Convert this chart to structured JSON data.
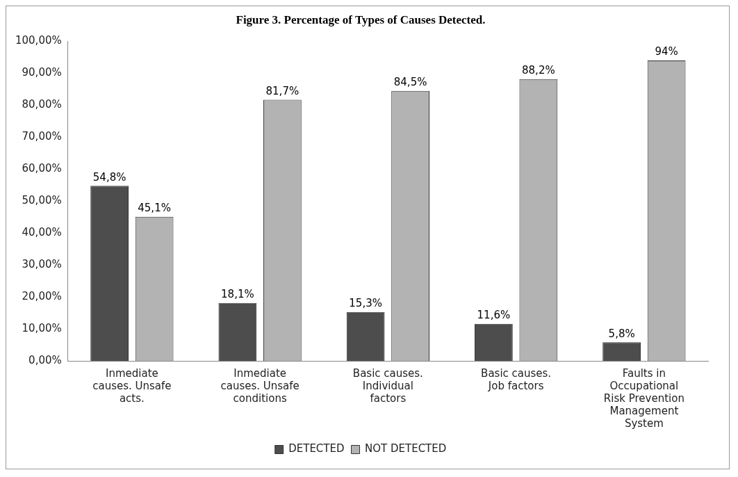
{
  "chart_data": {
    "type": "bar",
    "title": "Figure 3. Percentage of Types of Causes Detected.",
    "categories": [
      "Inmediate causes. Unsafe acts.",
      "Inmediate causes. Unsafe conditions",
      "Basic causes. Individual factors",
      "Basic causes. Job factors",
      "Faults in Occupational Risk Prevention Management System"
    ],
    "series": [
      {
        "name": "DETECTED",
        "color": "#4d4d4d",
        "values": [
          54.8,
          18.1,
          15.3,
          11.6,
          5.8
        ],
        "value_labels": [
          "54,8%",
          "18,1%",
          "15,3%",
          "11,6%",
          "5,8%"
        ]
      },
      {
        "name": "NOT DETECTED",
        "color": "#b3b3b3",
        "values": [
          45.1,
          81.7,
          84.5,
          88.2,
          94
        ],
        "value_labels": [
          "45,1%",
          "81,7%",
          "84,5%",
          "88,2%",
          "94%"
        ]
      }
    ],
    "ylim": [
      0,
      100
    ],
    "yticks": [
      {
        "value": 0,
        "label": "0,00%"
      },
      {
        "value": 10,
        "label": "10,00%"
      },
      {
        "value": 20,
        "label": "20,00%"
      },
      {
        "value": 30,
        "label": "30,00%"
      },
      {
        "value": 40,
        "label": "40,00%"
      },
      {
        "value": 50,
        "label": "50,00%"
      },
      {
        "value": 60,
        "label": "60,00%"
      },
      {
        "value": 70,
        "label": "70,00%"
      },
      {
        "value": 80,
        "label": "80,00%"
      },
      {
        "value": 90,
        "label": "90,00%"
      },
      {
        "value": 100,
        "label": "100,00%"
      }
    ],
    "grid": false,
    "legend": "bottom"
  }
}
